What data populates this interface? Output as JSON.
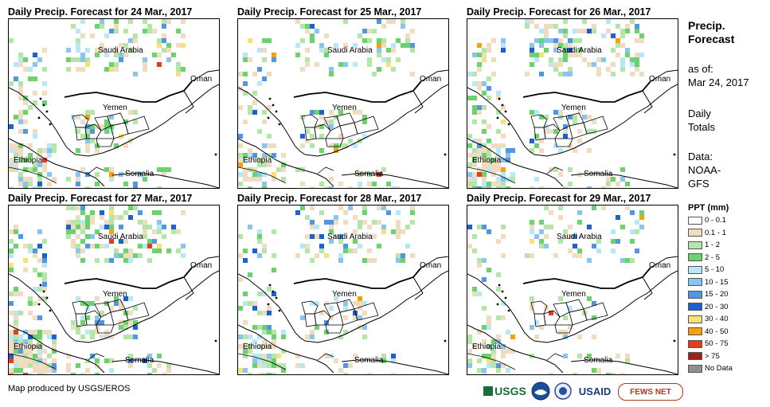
{
  "panels": [
    {
      "title": "Daily Precip. Forecast for 24 Mar., 2017",
      "seed": 24,
      "density": 0.55
    },
    {
      "title": "Daily Precip. Forecast for 25 Mar., 2017",
      "seed": 25,
      "density": 0.45
    },
    {
      "title": "Daily Precip. Forecast for 26 Mar., 2017",
      "seed": 26,
      "density": 0.6
    },
    {
      "title": "Daily Precip. Forecast for 27 Mar., 2017",
      "seed": 27,
      "density": 0.7
    },
    {
      "title": "Daily Precip. Forecast for 28 Mar., 2017",
      "seed": 28,
      "density": 0.5
    },
    {
      "title": "Daily Precip. Forecast for 29 Mar., 2017",
      "seed": 29,
      "density": 0.35
    }
  ],
  "places": {
    "saudi_arabia": "Saudi Arabia",
    "oman": "Oman",
    "yemen": "Yemen",
    "ethiopia": "Ethiopia",
    "somalia": "Somalia"
  },
  "legend": {
    "title_line1": "Precip.",
    "title_line2": "Forecast",
    "asof_line1": "as of:",
    "asof_line2": "Mar 24, 2017",
    "daily_line1": "Daily",
    "daily_line2": "Totals",
    "data_line1": "Data:",
    "data_line2": "NOAA-",
    "data_line3": "GFS",
    "ppt_label": "PPT (mm)",
    "items": [
      {
        "label": "0 - 0.1",
        "color": "#ffffff"
      },
      {
        "label": "0.1 - 1",
        "color": "#f0dcc0"
      },
      {
        "label": "1 - 2",
        "color": "#b4e6a8"
      },
      {
        "label": "2 - 5",
        "color": "#6cd26e"
      },
      {
        "label": "5 - 10",
        "color": "#b8e8f6"
      },
      {
        "label": "10 - 15",
        "color": "#8cc4f0"
      },
      {
        "label": "15 - 20",
        "color": "#4f96e6"
      },
      {
        "label": "20 - 30",
        "color": "#1e5fd2"
      },
      {
        "label": "30 - 40",
        "color": "#f8e07a"
      },
      {
        "label": "40 - 50",
        "color": "#f5a011"
      },
      {
        "label": "50 - 75",
        "color": "#e63c1e"
      },
      {
        "label": "> 75",
        "color": "#a01e1e"
      },
      {
        "label": "No Data",
        "color": "#909090"
      }
    ]
  },
  "footer": {
    "credit": "Map produced by USGS/EROS"
  },
  "logos": {
    "usgs": "USGS",
    "usaid": "USAID",
    "fewsnet": "FEWS NET"
  }
}
